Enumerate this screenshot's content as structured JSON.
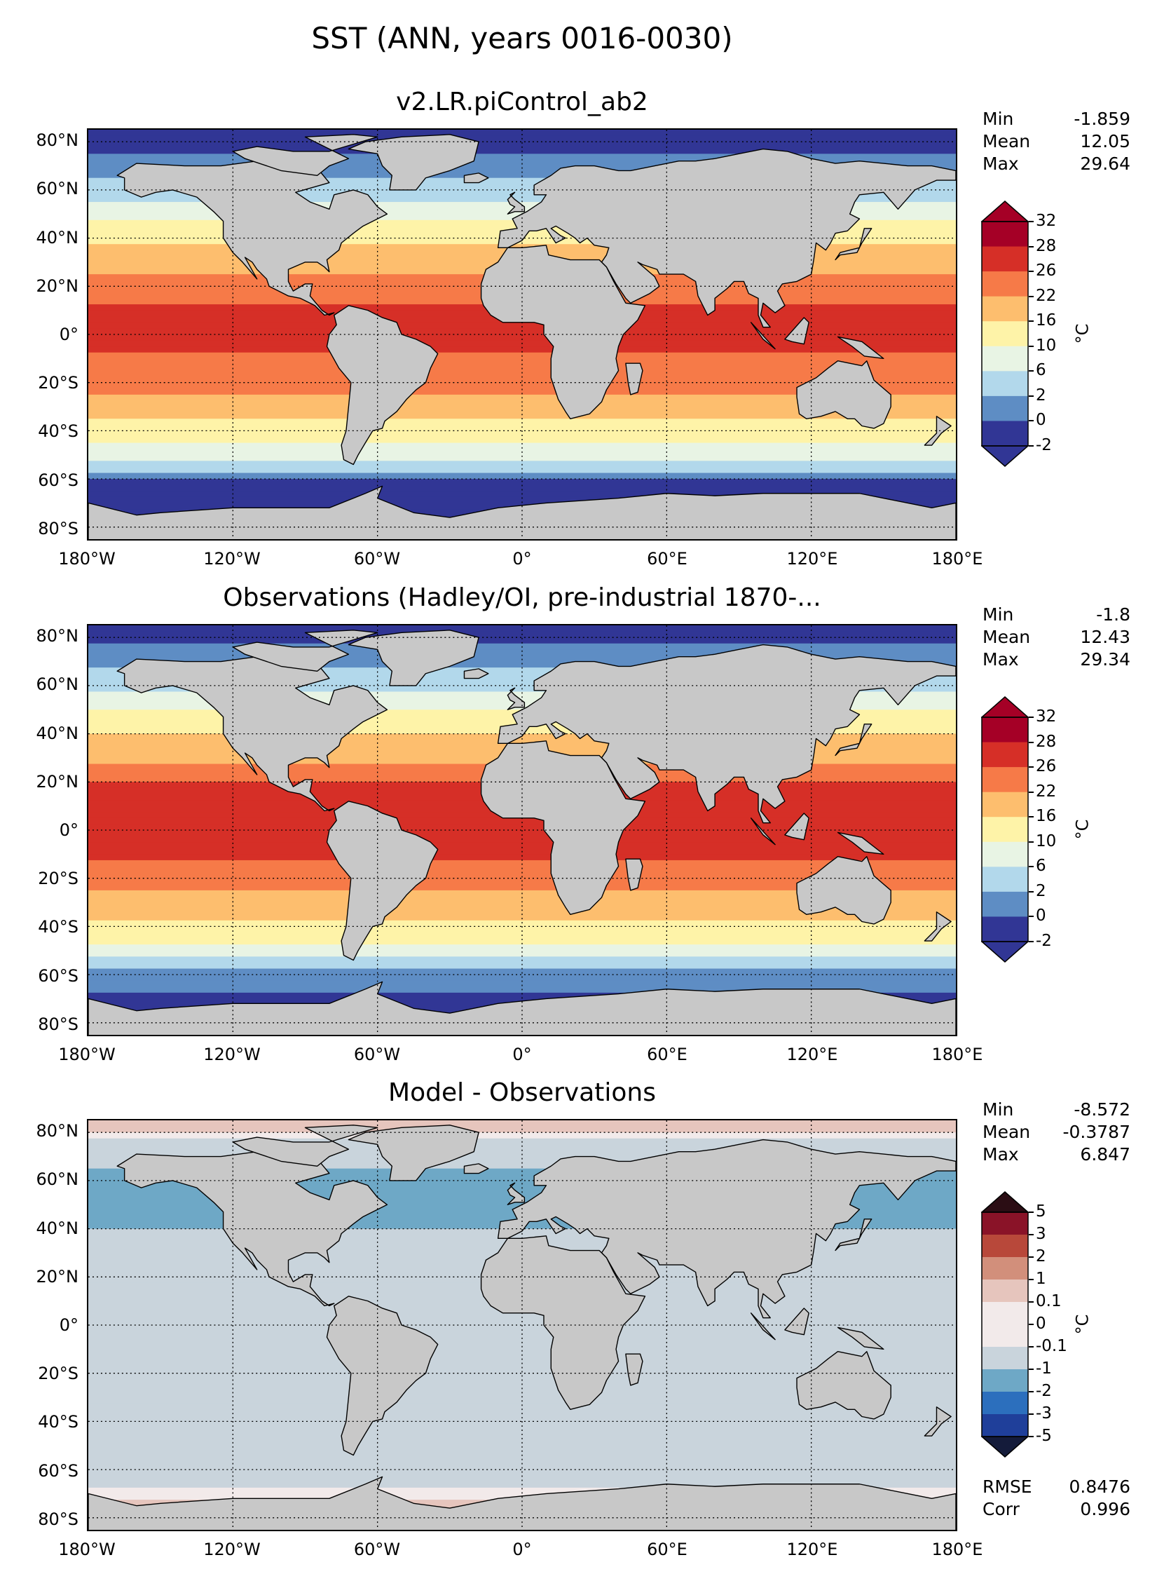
{
  "chart_data": [
    {
      "type": "heatmap",
      "title": "v2.LR.piControl_ab2",
      "xlabel": "",
      "ylabel": "",
      "x_ticks": [
        "180°W",
        "120°W",
        "60°W",
        "0°",
        "60°E",
        "120°E",
        "180°E"
      ],
      "y_ticks": [
        "80°N",
        "60°N",
        "40°N",
        "20°N",
        "0°",
        "20°S",
        "40°S",
        "60°S",
        "80°S"
      ],
      "xlim": [
        -180,
        180
      ],
      "ylim": [
        -85,
        85
      ],
      "grid": true,
      "stats": {
        "Min": "-1.859",
        "Mean": "12.05",
        "Max": "29.64"
      },
      "colorbar": {
        "levels": [
          "-2",
          "0",
          "2",
          "6",
          "10",
          "16",
          "22",
          "26",
          "28",
          "32"
        ],
        "colors": [
          "#313695",
          "#5e8dc4",
          "#b2d8eb",
          "#e8f4e4",
          "#fef3a8",
          "#fdbe6e",
          "#f67a48",
          "#d62f27",
          "#a50026"
        ],
        "unit": "°C",
        "extend": "both"
      },
      "approx_zonal_profile": {
        "lat": [
          85,
          60,
          40,
          20,
          0,
          -20,
          -40,
          -60,
          -80
        ],
        "value": [
          -1.8,
          3,
          15,
          25,
          27.5,
          24,
          14,
          0,
          -1.8
        ]
      }
    },
    {
      "type": "heatmap",
      "title": "Observations (Hadley/OI, pre-industrial 1870-...",
      "xlabel": "",
      "ylabel": "",
      "x_ticks": [
        "180°W",
        "120°W",
        "60°W",
        "0°",
        "60°E",
        "120°E",
        "180°E"
      ],
      "y_ticks": [
        "80°N",
        "60°N",
        "40°N",
        "20°N",
        "0°",
        "20°S",
        "40°S",
        "60°S",
        "80°S"
      ],
      "xlim": [
        -180,
        180
      ],
      "ylim": [
        -85,
        85
      ],
      "grid": true,
      "stats": {
        "Min": "-1.8",
        "Mean": "12.43",
        "Max": "29.34"
      },
      "colorbar": {
        "levels": [
          "-2",
          "0",
          "2",
          "6",
          "10",
          "16",
          "22",
          "26",
          "28",
          "32"
        ],
        "colors": [
          "#313695",
          "#5e8dc4",
          "#b2d8eb",
          "#e8f4e4",
          "#fef3a8",
          "#fdbe6e",
          "#f67a48",
          "#d62f27",
          "#a50026"
        ],
        "unit": "°C",
        "extend": "both"
      },
      "approx_zonal_profile": {
        "lat": [
          85,
          60,
          40,
          20,
          0,
          -20,
          -40,
          -60,
          -80
        ],
        "value": [
          -1.8,
          4,
          16,
          26,
          28,
          25,
          15,
          1,
          -1.8
        ]
      }
    },
    {
      "type": "heatmap",
      "title": "Model - Observations",
      "xlabel": "",
      "ylabel": "",
      "x_ticks": [
        "180°W",
        "120°W",
        "60°W",
        "0°",
        "60°E",
        "120°E",
        "180°E"
      ],
      "y_ticks": [
        "80°N",
        "60°N",
        "40°N",
        "20°N",
        "0°",
        "20°S",
        "40°S",
        "60°S",
        "80°S"
      ],
      "xlim": [
        -180,
        180
      ],
      "ylim": [
        -85,
        85
      ],
      "grid": true,
      "stats": {
        "Min": "-8.572",
        "Mean": "-0.3787",
        "Max": "6.847"
      },
      "extra_stats": {
        "RMSE": "0.8476",
        "Corr": "0.996"
      },
      "colorbar": {
        "levels": [
          "-5",
          "-3",
          "-2",
          "-1",
          "-0.1",
          "0",
          "0.1",
          "1",
          "2",
          "3",
          "5"
        ],
        "colors": [
          "#1f3f9a",
          "#2c6fbd",
          "#6ea8c6",
          "#c9d4dc",
          "#f2eaea",
          "#f2eaea",
          "#e6c5bd",
          "#d28f7b",
          "#b8483a",
          "#8a1328"
        ],
        "unit": "°C",
        "extend": "both"
      },
      "approx_zonal_profile": {
        "lat": [
          85,
          60,
          40,
          20,
          0,
          -20,
          -40,
          -60,
          -80
        ],
        "value": [
          0.5,
          -1.5,
          -1,
          -0.5,
          -0.8,
          -0.6,
          -0.2,
          -0.3,
          0.3
        ]
      }
    }
  ]
}
